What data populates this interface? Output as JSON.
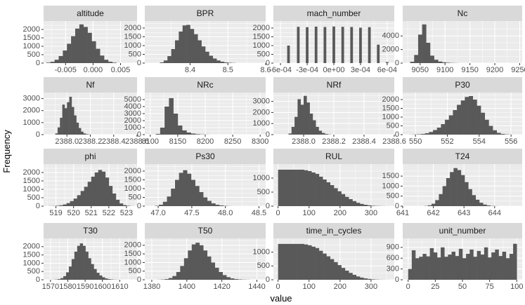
{
  "chart_data": {
    "type": "bar",
    "subtype": "faceted-histogram",
    "xlabel": "value",
    "ylabel": "Frequency",
    "facet_rows": 4,
    "facet_cols": 4,
    "panels": [
      {
        "name": "altitude",
        "xlim": [
          -0.009,
          0.008
        ],
        "ylim": [
          0,
          2500
        ],
        "xticks": [
          -0.005,
          0.0,
          0.005
        ],
        "xtick_labels": [
          "-0.005",
          "0.000",
          "0.005"
        ],
        "yticks": [
          0,
          500,
          1000,
          1500,
          2000
        ],
        "ytick_labels": [
          "0",
          "500",
          "1000",
          "1500",
          "2000"
        ],
        "bin_start": -0.0085,
        "bin_width": 0.00075,
        "counts": [
          30,
          80,
          200,
          420,
          750,
          1150,
          1600,
          2050,
          2300,
          2150,
          1800,
          1300,
          850,
          450,
          200,
          80,
          30
        ]
      },
      {
        "name": "BPR",
        "xlim": [
          8.28,
          8.6
        ],
        "ylim": [
          0,
          2400
        ],
        "xticks": [
          8.4,
          8.5,
          8.6
        ],
        "xtick_labels": [
          "8.4",
          "8.5",
          "8.6"
        ],
        "yticks": [
          0,
          500,
          1000,
          1500,
          2000
        ],
        "ytick_labels": [
          "0",
          "500",
          "1000",
          "1500",
          "2000"
        ],
        "bin_start": 8.32,
        "bin_width": 0.01,
        "counts": [
          40,
          150,
          400,
          800,
          1300,
          1800,
          2150,
          2180,
          1950,
          1650,
          1300,
          950,
          650,
          420,
          260,
          150,
          80,
          40,
          20,
          10
        ]
      },
      {
        "name": "mach_number",
        "xlim": [
          -0.00068,
          0.00068
        ],
        "ylim": [
          0,
          2400
        ],
        "xticks": [
          -0.0006,
          -0.0003,
          0.0,
          0.0003,
          0.0006
        ],
        "xtick_labels": [
          "-6e-04",
          "-3e-04",
          "0e+00",
          "3e-04",
          "6e-04"
        ],
        "yticks": [
          0,
          500,
          1000,
          1500,
          2000
        ],
        "ytick_labels": [
          "0",
          "500",
          "1000",
          "1500",
          "2000"
        ],
        "bars": [
          [
            -0.00051,
            3e-05,
            1000
          ],
          [
            -0.0004,
            3e-05,
            2070
          ],
          [
            -0.0003,
            3e-05,
            2050
          ],
          [
            -0.0002,
            3e-05,
            2080
          ],
          [
            -0.0001,
            3e-05,
            2060
          ],
          [
            0.0,
            3e-05,
            2090
          ],
          [
            0.0001,
            3e-05,
            2070
          ],
          [
            0.0002,
            3e-05,
            2060
          ],
          [
            0.0003,
            3e-05,
            2020
          ],
          [
            0.0004,
            3e-05,
            2050
          ],
          [
            0.0005,
            3e-05,
            1050
          ],
          [
            0.0006,
            3e-05,
            60
          ]
        ]
      },
      {
        "name": "Nc",
        "xlim": [
          9015,
          9255
        ],
        "ylim": [
          0,
          6200
        ],
        "xticks": [
          9050,
          9100,
          9150,
          9200,
          9250
        ],
        "xtick_labels": [
          "9050",
          "9100",
          "9150",
          "9200",
          "9250"
        ],
        "yticks": [
          0,
          2000,
          4000
        ],
        "ytick_labels": [
          "0",
          "2000",
          "4000"
        ],
        "bin_start": 9030,
        "bin_width": 8,
        "counts": [
          200,
          1200,
          4200,
          5700,
          3000,
          1100,
          500,
          230,
          120,
          60,
          30,
          15
        ]
      },
      {
        "name": "Nf",
        "xlim": [
          2387.8,
          2388.6
        ],
        "ylim": [
          0,
          3500
        ],
        "xticks": [
          2388.0,
          2388.2,
          2388.4,
          2388.6
        ],
        "xtick_labels": [
          "2388.0",
          "2388.2",
          "2388.4",
          "2388.6"
        ],
        "yticks": [
          0,
          1000,
          2000,
          3000
        ],
        "ytick_labels": [
          "0",
          "1000",
          "2000",
          "3000"
        ],
        "bin_start": 2387.9,
        "bin_width": 0.02,
        "counts": [
          100,
          600,
          1400,
          2500,
          2200,
          2700,
          3150,
          2300,
          1600,
          1000,
          550,
          250,
          100,
          40,
          15
        ]
      },
      {
        "name": "NRc",
        "xlim": [
          8090,
          8310
        ],
        "ylim": [
          0,
          6000
        ],
        "xticks": [
          8100,
          8150,
          8200,
          8250,
          8300
        ],
        "xtick_labels": [
          "8100",
          "8150",
          "8200",
          "8250",
          "8300"
        ],
        "yticks": [
          0,
          1000,
          2000,
          3000,
          4000,
          5000
        ],
        "ytick_labels": [
          "0",
          "1000",
          "2000",
          "3000",
          "4000",
          "5000"
        ],
        "bin_start": 8110,
        "bin_width": 8,
        "counts": [
          100,
          1000,
          4000,
          5200,
          3000,
          1300,
          600,
          300,
          150,
          70,
          30,
          15
        ]
      },
      {
        "name": "NRf",
        "xlim": [
          2387.8,
          2388.6
        ],
        "ylim": [
          0,
          3800
        ],
        "xticks": [
          2388.0,
          2388.2,
          2388.4,
          2388.6
        ],
        "xtick_labels": [
          "2388.0",
          "2388.2",
          "2388.4",
          "2388.6"
        ],
        "yticks": [
          0,
          1000,
          2000,
          3000
        ],
        "ytick_labels": [
          "0",
          "1000",
          "2000",
          "3000"
        ],
        "bin_start": 2387.9,
        "bin_width": 0.02,
        "counts": [
          100,
          700,
          1600,
          3200,
          2700,
          3500,
          2900,
          1900,
          1300,
          700,
          350,
          150,
          60,
          20
        ]
      },
      {
        "name": "P30",
        "xlim": [
          549.2,
          556.7
        ],
        "ylim": [
          0,
          2400
        ],
        "xticks": [
          550,
          552,
          554,
          556
        ],
        "xtick_labels": [
          "550",
          "552",
          "554",
          "556"
        ],
        "yticks": [
          0,
          500,
          1000,
          1500,
          2000
        ],
        "ytick_labels": [
          "0",
          "500",
          "1000",
          "1500",
          "2000"
        ],
        "bin_start": 549.6,
        "bin_width": 0.25,
        "counts": [
          5,
          10,
          20,
          40,
          80,
          150,
          260,
          400,
          600,
          850,
          1100,
          1400,
          1700,
          1950,
          2150,
          2200,
          2000,
          1650,
          1250,
          850,
          500,
          250,
          100,
          40,
          15,
          5
        ]
      },
      {
        "name": "phi",
        "xlim": [
          518.3,
          523.6
        ],
        "ylim": [
          0,
          2500
        ],
        "xticks": [
          519,
          520,
          521,
          522,
          523
        ],
        "xtick_labels": [
          "519",
          "520",
          "521",
          "522",
          "523"
        ],
        "yticks": [
          0,
          500,
          1000,
          1500,
          2000
        ],
        "ytick_labels": [
          "0",
          "500",
          "1000",
          "1500",
          "2000"
        ],
        "bin_start": 518.6,
        "bin_width": 0.2,
        "counts": [
          5,
          10,
          25,
          50,
          100,
          180,
          300,
          450,
          650,
          900,
          1150,
          1450,
          1750,
          2000,
          2150,
          2050,
          1700,
          1200,
          750,
          380,
          160,
          60,
          20,
          5
        ]
      },
      {
        "name": "Ps30",
        "xlim": [
          46.8,
          48.6
        ],
        "ylim": [
          0,
          2400
        ],
        "xticks": [
          47.0,
          47.5,
          48.0,
          48.5
        ],
        "xtick_labels": [
          "47.0",
          "47.5",
          "48.0",
          "48.5"
        ],
        "bin_start": 46.95,
        "bin_width": 0.06,
        "yticks": [
          0,
          500,
          1000,
          1500,
          2000
        ],
        "ytick_labels": [
          "0",
          "500",
          "1000",
          "1500",
          "2000"
        ],
        "counts": [
          20,
          80,
          250,
          550,
          1000,
          1500,
          1900,
          2050,
          1850,
          1500,
          1150,
          800,
          500,
          300,
          160,
          80,
          40,
          15,
          5
        ]
      },
      {
        "name": "RUL",
        "xlim": [
          -15,
          375
        ],
        "ylim": [
          0,
          1500
        ],
        "xticks": [
          0,
          100,
          200,
          300
        ],
        "xtick_labels": [
          "0",
          "100",
          "200",
          "300"
        ],
        "yticks": [
          0,
          500,
          1000
        ],
        "ytick_labels": [
          "0",
          "500",
          "1000"
        ],
        "bin_start": 0,
        "bin_width": 12,
        "counts": [
          1300,
          1300,
          1300,
          1300,
          1300,
          1300,
          1300,
          1280,
          1250,
          1200,
          1150,
          1050,
          950,
          850,
          750,
          640,
          530,
          430,
          330,
          250,
          180,
          120,
          80,
          50,
          30,
          15,
          8,
          4,
          2,
          1
        ]
      },
      {
        "name": "T24",
        "xlim": [
          641,
          644.9
        ],
        "ylim": [
          0,
          2100
        ],
        "xticks": [
          641,
          642,
          643,
          644
        ],
        "xtick_labels": [
          "641",
          "642",
          "643",
          "644"
        ],
        "yticks": [
          0,
          500,
          1000,
          1500
        ],
        "ytick_labels": [
          "0",
          "500",
          "1000",
          "1500"
        ],
        "bin_start": 641.7,
        "bin_width": 0.12,
        "counts": [
          10,
          40,
          120,
          300,
          600,
          1000,
          1400,
          1700,
          1900,
          1800,
          1550,
          1200,
          850,
          550,
          320,
          170,
          80,
          35,
          12,
          4
        ]
      },
      {
        "name": "T30",
        "xlim": [
          1566,
          1620
        ],
        "ylim": [
          0,
          2500
        ],
        "xticks": [
          1570,
          1580,
          1590,
          1600,
          1610
        ],
        "xtick_labels": [
          "1570",
          "1580",
          "1590",
          "1600",
          "1610"
        ],
        "yticks": [
          0,
          500,
          1000,
          1500,
          2000
        ],
        "ytick_labels": [
          "0",
          "500",
          "1000",
          "1500",
          "2000"
        ],
        "bin_start": 1571,
        "bin_width": 1.6,
        "counts": [
          5,
          15,
          40,
          100,
          220,
          450,
          800,
          1250,
          1700,
          2050,
          2200,
          2050,
          1700,
          1300,
          950,
          650,
          420,
          260,
          150,
          80,
          40,
          20,
          10,
          5
        ]
      },
      {
        "name": "T50",
        "xlim": [
          1376,
          1445
        ],
        "ylim": [
          0,
          2400
        ],
        "xticks": [
          1380,
          1400,
          1420,
          1440
        ],
        "xtick_labels": [
          "1380",
          "1400",
          "1420",
          "1440"
        ],
        "yticks": [
          0,
          500,
          1000,
          1500,
          2000
        ],
        "ytick_labels": [
          "0",
          "500",
          "1000",
          "1500",
          "2000"
        ],
        "bin_start": 1383,
        "bin_width": 2.2,
        "counts": [
          5,
          15,
          40,
          100,
          220,
          450,
          800,
          1250,
          1700,
          2050,
          2150,
          2000,
          1700,
          1350,
          1000,
          700,
          450,
          270,
          150,
          80,
          40,
          20,
          10,
          5
        ]
      },
      {
        "name": "time_in_cycles",
        "xlim": [
          -15,
          375
        ],
        "ylim": [
          0,
          1500
        ],
        "xticks": [
          0,
          100,
          200,
          300
        ],
        "xtick_labels": [
          "0",
          "100",
          "200",
          "300"
        ],
        "yticks": [
          0,
          500,
          1000
        ],
        "ytick_labels": [
          "0",
          "500",
          "1000"
        ],
        "bin_start": 0,
        "bin_width": 12,
        "counts": [
          1300,
          1300,
          1300,
          1300,
          1300,
          1300,
          1300,
          1280,
          1250,
          1200,
          1150,
          1050,
          950,
          850,
          750,
          640,
          530,
          430,
          330,
          250,
          180,
          120,
          80,
          50,
          30,
          15,
          8,
          4,
          2,
          1
        ]
      },
      {
        "name": "unit_number",
        "xlim": [
          -5,
          105
        ],
        "ylim": [
          0,
          1150
        ],
        "xticks": [
          0,
          25,
          50,
          75,
          100
        ],
        "xtick_labels": [
          "0",
          "25",
          "50",
          "75",
          "100"
        ],
        "yticks": [
          0,
          300,
          600,
          900
        ],
        "ytick_labels": [
          "0",
          "300",
          "600",
          "900"
        ],
        "bin_start": 0,
        "bin_width": 3.333,
        "counts": [
          300,
          820,
          600,
          640,
          720,
          650,
          880,
          760,
          620,
          900,
          640,
          700,
          780,
          660,
          860,
          600,
          720,
          840,
          640,
          800,
          700,
          900,
          620,
          760,
          840,
          660,
          780,
          600,
          720,
          1000
        ]
      }
    ]
  }
}
